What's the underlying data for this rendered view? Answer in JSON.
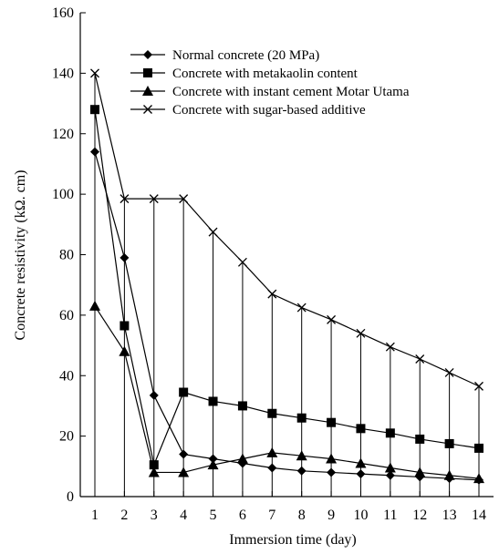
{
  "chart_data": {
    "type": "line",
    "title": "",
    "xlabel": "Immersion time (day)",
    "ylabel": "Concrete resistivity (kΩ. cm)",
    "xlim": [
      1,
      14
    ],
    "ylim": [
      0,
      160
    ],
    "x_ticks": [
      "1",
      "2",
      "3",
      "4",
      "5",
      "6",
      "7",
      "8",
      "9",
      "10",
      "11",
      "12",
      "13",
      "14"
    ],
    "y_ticks": [
      "0",
      "20",
      "40",
      "60",
      "80",
      "100",
      "120",
      "140",
      "160"
    ],
    "grid": false,
    "legend_position": "top-right",
    "drop_lines": true,
    "x": [
      1,
      2,
      3,
      4,
      5,
      6,
      7,
      8,
      9,
      10,
      11,
      12,
      13,
      14
    ],
    "series": [
      {
        "name": "Normal concrete (20 MPa)",
        "marker": "diamond",
        "values": [
          114,
          79,
          33.5,
          14,
          12.5,
          11,
          9.5,
          8.5,
          8,
          7.5,
          7,
          6.5,
          6,
          5.5
        ]
      },
      {
        "name": "Concrete with metakaolin content",
        "marker": "square",
        "values": [
          128,
          56.5,
          10.5,
          34.5,
          31.5,
          30,
          27.5,
          26,
          24.5,
          22.5,
          21,
          19,
          17.5,
          16
        ]
      },
      {
        "name": "Concrete with instant cement Motar Utama",
        "marker": "triangle",
        "values": [
          63,
          48,
          8,
          8,
          10.5,
          12.5,
          14.5,
          13.5,
          12.5,
          11,
          9.5,
          8,
          7,
          6
        ]
      },
      {
        "name": "Concrete with sugar-based additive",
        "marker": "x",
        "values": [
          140,
          98.5,
          98.5,
          98.5,
          87.5,
          77.5,
          67,
          62.5,
          58.5,
          54,
          49.5,
          45.5,
          41,
          36.5
        ]
      }
    ]
  }
}
